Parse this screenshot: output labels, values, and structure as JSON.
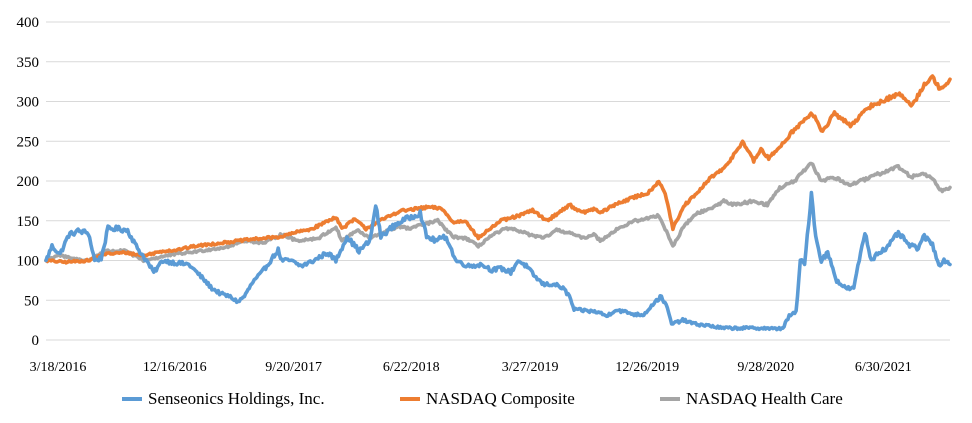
{
  "chart_data": {
    "type": "line",
    "title": "",
    "xlabel": "",
    "ylabel": "",
    "ylim": [
      0,
      400
    ],
    "yticks": [
      0,
      50,
      100,
      150,
      200,
      250,
      300,
      350,
      400
    ],
    "xlim": [
      "2016-03-18",
      "2021-12-31"
    ],
    "xtick_labels": [
      "3/18/2016",
      "12/16/2016",
      "9/20/2017",
      "6/22/2018",
      "3/27/2019",
      "12/26/2019",
      "9/28/2020",
      "6/30/2021"
    ],
    "xtick_dates": [
      "2016-03-18",
      "2016-12-16",
      "2017-09-20",
      "2018-06-22",
      "2019-03-27",
      "2019-12-26",
      "2020-09-28",
      "2021-06-30"
    ],
    "grid": "horizontal",
    "legend_position": "bottom",
    "series": [
      {
        "name": "Senseonics Holdings, Inc.",
        "color": "#5B9BD5",
        "points": [
          [
            "2016-03-18",
            100
          ],
          [
            "2016-04-01",
            118
          ],
          [
            "2016-04-20",
            108
          ],
          [
            "2016-05-10",
            132
          ],
          [
            "2016-06-01",
            137
          ],
          [
            "2016-06-25",
            135
          ],
          [
            "2016-07-10",
            100
          ],
          [
            "2016-07-25",
            103
          ],
          [
            "2016-08-10",
            140
          ],
          [
            "2016-09-01",
            140
          ],
          [
            "2016-09-25",
            138
          ],
          [
            "2016-10-15",
            118
          ],
          [
            "2016-11-10",
            98
          ],
          [
            "2016-11-25",
            85
          ],
          [
            "2016-12-16",
            100
          ],
          [
            "2017-01-15",
            97
          ],
          [
            "2017-02-15",
            95
          ],
          [
            "2017-03-15",
            80
          ],
          [
            "2017-04-10",
            65
          ],
          [
            "2017-05-01",
            58
          ],
          [
            "2017-05-20",
            55
          ],
          [
            "2017-06-10",
            48
          ],
          [
            "2017-06-25",
            55
          ],
          [
            "2017-07-15",
            73
          ],
          [
            "2017-08-05",
            85
          ],
          [
            "2017-08-25",
            100
          ],
          [
            "2017-09-12",
            113
          ],
          [
            "2017-09-20",
            100
          ],
          [
            "2017-10-10",
            100
          ],
          [
            "2017-11-05",
            93
          ],
          [
            "2017-12-05",
            100
          ],
          [
            "2018-01-05",
            110
          ],
          [
            "2018-01-25",
            100
          ],
          [
            "2018-02-20",
            130
          ],
          [
            "2018-03-20",
            112
          ],
          [
            "2018-04-15",
            125
          ],
          [
            "2018-04-28",
            170
          ],
          [
            "2018-05-10",
            130
          ],
          [
            "2018-06-01",
            140
          ],
          [
            "2018-06-22",
            148
          ],
          [
            "2018-07-20",
            155
          ],
          [
            "2018-08-10",
            160
          ],
          [
            "2018-08-25",
            130
          ],
          [
            "2018-09-15",
            125
          ],
          [
            "2018-10-10",
            130
          ],
          [
            "2018-11-01",
            100
          ],
          [
            "2018-12-01",
            93
          ],
          [
            "2019-01-01",
            95
          ],
          [
            "2019-01-25",
            88
          ],
          [
            "2019-02-15",
            90
          ],
          [
            "2019-03-10",
            85
          ],
          [
            "2019-03-27",
            100
          ],
          [
            "2019-04-15",
            93
          ],
          [
            "2019-05-05",
            80
          ],
          [
            "2019-05-25",
            70
          ],
          [
            "2019-06-20",
            70
          ],
          [
            "2019-07-10",
            65
          ],
          [
            "2019-07-25",
            55
          ],
          [
            "2019-08-05",
            38
          ],
          [
            "2019-09-01",
            37
          ],
          [
            "2019-10-01",
            35
          ],
          [
            "2019-10-20",
            30
          ],
          [
            "2019-11-10",
            38
          ],
          [
            "2019-12-05",
            35
          ],
          [
            "2019-12-26",
            32
          ],
          [
            "2020-01-15",
            32
          ],
          [
            "2020-02-05",
            45
          ],
          [
            "2020-02-25",
            55
          ],
          [
            "2020-03-10",
            40
          ],
          [
            "2020-03-20",
            20
          ],
          [
            "2020-04-15",
            25
          ],
          [
            "2020-05-15",
            20
          ],
          [
            "2020-06-15",
            18
          ],
          [
            "2020-07-15",
            15
          ],
          [
            "2020-08-15",
            15
          ],
          [
            "2020-09-28",
            15
          ],
          [
            "2020-10-20",
            15
          ],
          [
            "2020-11-15",
            14
          ],
          [
            "2020-12-05",
            15
          ],
          [
            "2020-12-20",
            30
          ],
          [
            "2021-01-05",
            35
          ],
          [
            "2021-01-15",
            100
          ],
          [
            "2021-01-25",
            95
          ],
          [
            "2021-02-10",
            185
          ],
          [
            "2021-02-20",
            130
          ],
          [
            "2021-03-05",
            100
          ],
          [
            "2021-03-20",
            110
          ],
          [
            "2021-04-10",
            75
          ],
          [
            "2021-05-01",
            65
          ],
          [
            "2021-05-20",
            65
          ],
          [
            "2021-06-05",
            110
          ],
          [
            "2021-06-15",
            135
          ],
          [
            "2021-06-30",
            100
          ],
          [
            "2021-07-15",
            110
          ],
          [
            "2021-08-05",
            115
          ],
          [
            "2021-09-01",
            135
          ],
          [
            "2021-09-25",
            120
          ],
          [
            "2021-10-15",
            115
          ],
          [
            "2021-11-01",
            130
          ],
          [
            "2021-11-20",
            120
          ],
          [
            "2021-12-05",
            95
          ],
          [
            "2021-12-20",
            100
          ],
          [
            "2021-12-31",
            95
          ]
        ]
      },
      {
        "name": "NASDAQ Composite",
        "color": "#ED7D31",
        "points": [
          [
            "2016-03-18",
            100
          ],
          [
            "2016-05-01",
            98
          ],
          [
            "2016-06-25",
            100
          ],
          [
            "2016-08-01",
            108
          ],
          [
            "2016-09-20",
            110
          ],
          [
            "2016-11-01",
            106
          ],
          [
            "2016-12-16",
            112
          ],
          [
            "2017-01-15",
            113
          ],
          [
            "2017-03-01",
            118
          ],
          [
            "2017-05-15",
            123
          ],
          [
            "2017-07-01",
            126
          ],
          [
            "2017-09-20",
            130
          ],
          [
            "2017-10-20",
            135
          ],
          [
            "2017-12-01",
            140
          ],
          [
            "2018-01-25",
            155
          ],
          [
            "2018-02-08",
            140
          ],
          [
            "2018-03-10",
            152
          ],
          [
            "2018-04-05",
            140
          ],
          [
            "2018-05-01",
            148
          ],
          [
            "2018-06-22",
            162
          ],
          [
            "2018-08-01",
            165
          ],
          [
            "2018-08-30",
            167
          ],
          [
            "2018-10-01",
            165
          ],
          [
            "2018-10-25",
            148
          ],
          [
            "2018-11-25",
            150
          ],
          [
            "2018-12-24",
            128
          ],
          [
            "2019-01-15",
            138
          ],
          [
            "2019-02-15",
            150
          ],
          [
            "2019-03-27",
            156
          ],
          [
            "2019-04-30",
            163
          ],
          [
            "2019-06-03",
            150
          ],
          [
            "2019-07-25",
            170
          ],
          [
            "2019-08-25",
            160
          ],
          [
            "2019-09-20",
            165
          ],
          [
            "2019-10-05",
            160
          ],
          [
            "2019-11-15",
            172
          ],
          [
            "2019-12-26",
            180
          ],
          [
            "2020-01-25",
            185
          ],
          [
            "2020-02-19",
            200
          ],
          [
            "2020-03-05",
            185
          ],
          [
            "2020-03-23",
            140
          ],
          [
            "2020-04-20",
            170
          ],
          [
            "2020-05-20",
            185
          ],
          [
            "2020-06-20",
            205
          ],
          [
            "2020-07-20",
            215
          ],
          [
            "2020-08-15",
            235
          ],
          [
            "2020-09-02",
            250
          ],
          [
            "2020-09-28",
            225
          ],
          [
            "2020-10-15",
            240
          ],
          [
            "2020-11-02",
            228
          ],
          [
            "2020-12-01",
            245
          ],
          [
            "2021-01-01",
            265
          ],
          [
            "2021-02-12",
            285
          ],
          [
            "2021-03-08",
            262
          ],
          [
            "2021-04-05",
            285
          ],
          [
            "2021-05-12",
            270
          ],
          [
            "2021-06-30",
            295
          ],
          [
            "2021-07-25",
            300
          ],
          [
            "2021-09-01",
            310
          ],
          [
            "2021-10-04",
            295
          ],
          [
            "2021-11-01",
            322
          ],
          [
            "2021-11-20",
            330
          ],
          [
            "2021-12-05",
            318
          ],
          [
            "2021-12-20",
            320
          ],
          [
            "2021-12-31",
            328
          ]
        ]
      },
      {
        "name": "NASDAQ Health Care",
        "color": "#A5A5A5",
        "points": [
          [
            "2016-03-18",
            100
          ],
          [
            "2016-04-15",
            107
          ],
          [
            "2016-05-20",
            102
          ],
          [
            "2016-06-27",
            100
          ],
          [
            "2016-08-01",
            112
          ],
          [
            "2016-09-20",
            112
          ],
          [
            "2016-11-01",
            100
          ],
          [
            "2016-12-16",
            105
          ],
          [
            "2017-01-15",
            108
          ],
          [
            "2017-02-15",
            110
          ],
          [
            "2017-03-25",
            113
          ],
          [
            "2017-05-15",
            117
          ],
          [
            "2017-06-25",
            125
          ],
          [
            "2017-08-10",
            122
          ],
          [
            "2017-09-20",
            133
          ],
          [
            "2017-10-25",
            125
          ],
          [
            "2017-12-15",
            128
          ],
          [
            "2018-01-25",
            142
          ],
          [
            "2018-02-08",
            125
          ],
          [
            "2018-03-15",
            138
          ],
          [
            "2018-04-15",
            128
          ],
          [
            "2018-05-15",
            135
          ],
          [
            "2018-06-22",
            143
          ],
          [
            "2018-07-15",
            140
          ],
          [
            "2018-08-15",
            145
          ],
          [
            "2018-09-20",
            150
          ],
          [
            "2018-10-25",
            130
          ],
          [
            "2018-11-25",
            128
          ],
          [
            "2018-12-24",
            118
          ],
          [
            "2019-01-20",
            130
          ],
          [
            "2019-02-25",
            140
          ],
          [
            "2019-03-27",
            138
          ],
          [
            "2019-04-25",
            132
          ],
          [
            "2019-05-25",
            128
          ],
          [
            "2019-06-25",
            138
          ],
          [
            "2019-07-25",
            135
          ],
          [
            "2019-08-25",
            128
          ],
          [
            "2019-09-20",
            133
          ],
          [
            "2019-10-05",
            125
          ],
          [
            "2019-11-15",
            140
          ],
          [
            "2019-12-26",
            150
          ],
          [
            "2020-01-25",
            153
          ],
          [
            "2020-02-19",
            157
          ],
          [
            "2020-03-05",
            140
          ],
          [
            "2020-03-23",
            118
          ],
          [
            "2020-04-20",
            145
          ],
          [
            "2020-05-20",
            160
          ],
          [
            "2020-06-20",
            165
          ],
          [
            "2020-07-20",
            175
          ],
          [
            "2020-08-15",
            170
          ],
          [
            "2020-09-28",
            175
          ],
          [
            "2020-10-30",
            170
          ],
          [
            "2020-11-25",
            190
          ],
          [
            "2021-01-01",
            200
          ],
          [
            "2021-02-10",
            222
          ],
          [
            "2021-03-05",
            200
          ],
          [
            "2021-04-01",
            205
          ],
          [
            "2021-05-12",
            195
          ],
          [
            "2021-06-30",
            205
          ],
          [
            "2021-08-01",
            212
          ],
          [
            "2021-09-01",
            218
          ],
          [
            "2021-10-01",
            205
          ],
          [
            "2021-11-01",
            210
          ],
          [
            "2021-11-25",
            200
          ],
          [
            "2021-12-10",
            188
          ],
          [
            "2021-12-31",
            192
          ]
        ]
      }
    ]
  }
}
